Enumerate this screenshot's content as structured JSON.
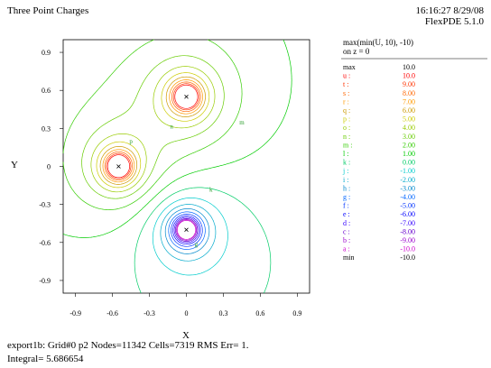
{
  "window": {
    "title": "Three Point Charges",
    "timestamp": "16:16:27 8/29/08",
    "version": "FlexPDE 5.1.0"
  },
  "footer": {
    "line1": "export1b:  Grid#0  p2  Nodes=11342 Cells=7319 RMS Err= 1.",
    "line2": "Integral=  5.686654"
  },
  "chart_data": {
    "type": "contour",
    "xlabel": "X",
    "ylabel": "Y",
    "xlim": [
      -1.0,
      1.0
    ],
    "ylim": [
      -1.0,
      1.0
    ],
    "xticks": [
      "-0.9",
      "-0.6",
      "-0.3",
      "0",
      "0.3",
      "0.6",
      "0.9"
    ],
    "yticks": [
      "0.9",
      "0.6",
      "0.3",
      "0",
      "-0.3",
      "-0.6",
      "-0.9"
    ],
    "legend_title": [
      "max(min(U, 10), -10)",
      "on z = 0"
    ],
    "legend": [
      {
        "label": "max",
        "value": "10.0",
        "color": "#000000"
      },
      {
        "label": "u :",
        "value": "10.0",
        "color": "#ff0000"
      },
      {
        "label": "t :",
        "value": "9.00",
        "color": "#ff3300"
      },
      {
        "label": "s :",
        "value": "8.00",
        "color": "#ff6600"
      },
      {
        "label": "r :",
        "value": "7.00",
        "color": "#ff9900"
      },
      {
        "label": "q :",
        "value": "6.00",
        "color": "#cc9900"
      },
      {
        "label": "p :",
        "value": "5.00",
        "color": "#cccc00"
      },
      {
        "label": "o :",
        "value": "4.00",
        "color": "#99cc00"
      },
      {
        "label": "n :",
        "value": "3.00",
        "color": "#66cc00"
      },
      {
        "label": "m :",
        "value": "2.00",
        "color": "#33cc00"
      },
      {
        "label": "l :",
        "value": "1.00",
        "color": "#00cc00"
      },
      {
        "label": "k :",
        "value": "0.00",
        "color": "#00cc66"
      },
      {
        "label": "j :",
        "value": "-1.00",
        "color": "#00cccc"
      },
      {
        "label": "i :",
        "value": "-2.00",
        "color": "#00aacc"
      },
      {
        "label": "h :",
        "value": "-3.00",
        "color": "#0088cc"
      },
      {
        "label": "g :",
        "value": "-4.00",
        "color": "#0066ff"
      },
      {
        "label": "f :",
        "value": "-5.00",
        "color": "#0033ff"
      },
      {
        "label": "e :",
        "value": "-6.00",
        "color": "#0000ff"
      },
      {
        "label": "d :",
        "value": "-7.00",
        "color": "#3300ff"
      },
      {
        "label": "c :",
        "value": "-8.00",
        "color": "#6600cc"
      },
      {
        "label": "b :",
        "value": "-9.00",
        "color": "#9900cc"
      },
      {
        "label": "a :",
        "value": "-10.0",
        "color": "#cc00cc"
      },
      {
        "label": "min",
        "value": "-10.0",
        "color": "#000000"
      }
    ],
    "charges": [
      {
        "x": 0.0,
        "y": 0.55,
        "q": 1
      },
      {
        "x": -0.55,
        "y": 0.0,
        "q": 1
      },
      {
        "x": 0.0,
        "y": -0.5,
        "q": -1
      }
    ],
    "contour_labels": [
      {
        "text": "m",
        "x": 0.45,
        "y": 0.33
      },
      {
        "text": "k",
        "x": 0.2,
        "y": -0.2
      },
      {
        "text": "n",
        "x": -0.12,
        "y": 0.3
      },
      {
        "text": "p",
        "x": -0.45,
        "y": 0.18
      },
      {
        "text": "g",
        "x": 0.08,
        "y": -0.63
      }
    ]
  }
}
